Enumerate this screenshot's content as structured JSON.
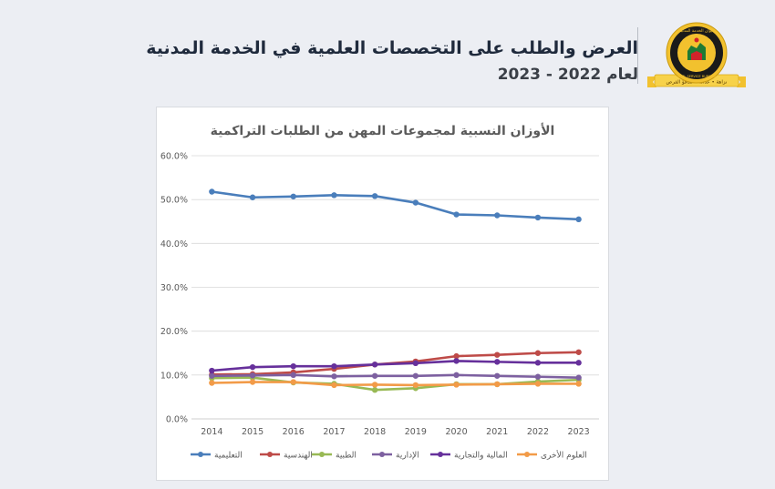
{
  "header": {
    "title": "العرض والطلب على التخصصات العلمية في الخدمة المدنية",
    "subtitle": "لعام 2022 - 2023",
    "logo_text": "ديوان الخدمة المدنية",
    "logo_banner": "نزاهة • عدالة • تكافؤ الفرص",
    "logo_latin": "CIVIL SERVICE BUREAU"
  },
  "colors": {
    "accent_gold": "#f2c12e",
    "logo_green": "#1e7a34",
    "logo_red": "#d1232a"
  },
  "chart_data": {
    "type": "line",
    "title": "الأوزان النسبية لمجموعات المهن من الطلبات التراكمية",
    "xlabel": "",
    "ylabel": "",
    "x": [
      2014,
      2015,
      2016,
      2017,
      2018,
      2019,
      2020,
      2021,
      2022,
      2023
    ],
    "ylim": [
      0,
      60
    ],
    "yticks": [
      "0.0%",
      "10.0%",
      "20.0%",
      "30.0%",
      "40.0%",
      "50.0%",
      "60.0%"
    ],
    "grid": true,
    "legend_position": "bottom",
    "series": [
      {
        "name": "التعليمية",
        "color": "#4a7ebb",
        "values": [
          51.8,
          50.5,
          50.7,
          51.0,
          50.8,
          49.3,
          46.6,
          46.4,
          45.9,
          45.5
        ]
      },
      {
        "name": "الهندسية",
        "color": "#be4b48",
        "values": [
          10.1,
          10.2,
          10.6,
          11.4,
          12.4,
          13.1,
          14.3,
          14.6,
          15.0,
          15.2
        ]
      },
      {
        "name": "الطبية",
        "color": "#98b954",
        "values": [
          9.3,
          9.4,
          8.3,
          8.0,
          6.6,
          7.0,
          7.9,
          7.9,
          8.5,
          8.9
        ]
      },
      {
        "name": "الإدارية",
        "color": "#7d60a0",
        "values": [
          9.8,
          9.9,
          10.0,
          9.7,
          9.8,
          9.8,
          10.0,
          9.8,
          9.6,
          9.4
        ]
      },
      {
        "name": "المالية والتجارية",
        "color": "#66309b",
        "values": [
          11.0,
          11.8,
          12.0,
          12.0,
          12.4,
          12.7,
          13.2,
          13.0,
          12.8,
          12.8
        ]
      },
      {
        "name": "العلوم الأخرى",
        "color": "#f29b48",
        "values": [
          8.2,
          8.4,
          8.4,
          7.7,
          7.8,
          7.7,
          7.8,
          7.9,
          8.0,
          8.0
        ]
      }
    ]
  }
}
